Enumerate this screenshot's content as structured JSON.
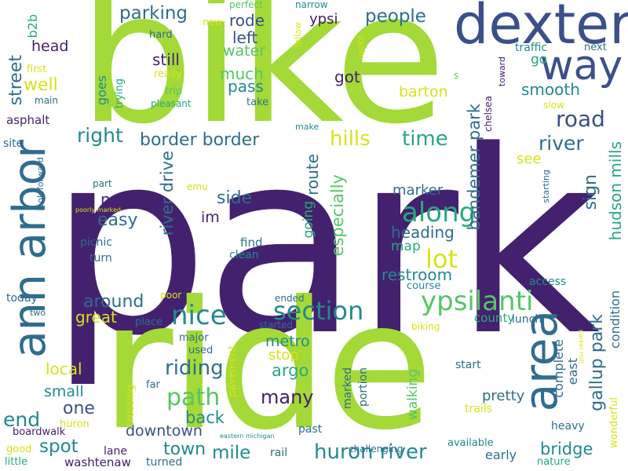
{
  "palette": {
    "dark_purple": "#44216e",
    "indigo": "#3b4f8a",
    "blue": "#2f6d8e",
    "teal": "#23898e",
    "green_teal": "#28a87f",
    "green": "#56c565",
    "lime": "#a3da37",
    "yellow": "#d7e219"
  },
  "words": {
    "park": "park",
    "bike": "bike",
    "ride": "ride",
    "dexter": "dexter",
    "ann_arbor": "ann arbor",
    "area": "area",
    "way": "way",
    "road": "road",
    "ypsilanti": "ypsilanti",
    "along": "along",
    "section": "section",
    "nice": "nice",
    "lot": "lot",
    "path": "path",
    "riding": "riding",
    "huron_river": "huron river",
    "border_border": "border border",
    "parking": "parking",
    "people": "people",
    "hills": "hills",
    "time": "time",
    "right": "right",
    "river": "river",
    "river_drive": "river drive",
    "bandemer_park": "bandemer park",
    "gallup_park": "gallup park",
    "hudson_mills": "hudson mills",
    "sign": "sign",
    "easy": "easy",
    "side": "side",
    "route": "route",
    "especially": "especially",
    "heading": "heading",
    "restroom": "restroom",
    "around": "around",
    "great": "great",
    "mile": "mile",
    "town": "town",
    "many": "many",
    "one": "one",
    "end": "end",
    "spot": "spot",
    "bridge": "bridge",
    "metro": "metro",
    "stop": "stop",
    "argo": "argo",
    "local": "local",
    "small": "small",
    "back": "back",
    "downtown": "downtown",
    "street": "street",
    "well": "well",
    "head": "head",
    "b2b": "b2b",
    "still": "still",
    "rode": "rode",
    "left": "left",
    "water": "water",
    "much": "much",
    "pass": "pass",
    "got": "got",
    "barton": "barton",
    "ypsi": "ypsi",
    "smooth": "smooth",
    "see": "see",
    "go": "go",
    "near": "near",
    "im": "im",
    "marker": "marker",
    "map": "map",
    "going": "going",
    "pretty": "pretty",
    "complete": "complete",
    "condition": "condition",
    "east": "east",
    "walking": "walking",
    "marked": "marked",
    "portion": "portion",
    "county": "county",
    "lunch": "lunch",
    "early": "early",
    "wonderful": "wonderful",
    "heavy": "heavy",
    "start": "start",
    "trails": "trails",
    "available": "available",
    "nature": "nature",
    "parker_mill": "parker mill",
    "challenging": "challenging",
    "past": "past",
    "eastern_michigan": "eastern michigan",
    "washtenaw": "washtenaw",
    "turned": "turned",
    "rail": "rail",
    "lane": "lane",
    "boardwalk": "boardwalk",
    "huron": "huron",
    "good": "good",
    "little": "little",
    "crossing": "crossing",
    "pavement": "pavement",
    "far": "far",
    "used": "used",
    "major": "major",
    "place": "place",
    "started": "started",
    "ended": "ended",
    "poor": "poor",
    "two": "two",
    "today": "today",
    "course": "course",
    "access": "access",
    "biking": "biking",
    "clean": "clean",
    "find": "find",
    "emu": "emu",
    "part": "part",
    "look_forward": "look forward",
    "poorly_marked": "poorly marked",
    "picnic": "picnic",
    "turn": "turn",
    "site": "site",
    "asphalt": "asphalt",
    "main": "main",
    "first": "first",
    "goes": "goes",
    "trying": "trying",
    "trip": "trip",
    "pleasant": "pleasant",
    "take": "take",
    "really": "really",
    "hard": "hard",
    "new": "new",
    "perfect": "perfect",
    "narrow": "narrow",
    "follow": "follow",
    "quite": "quite",
    "traffic": "traffic",
    "next": "next",
    "toward": "toward",
    "s": "s",
    "slow": "slow",
    "chelsea": "chelsea",
    "starting": "starting",
    "make": "make"
  }
}
